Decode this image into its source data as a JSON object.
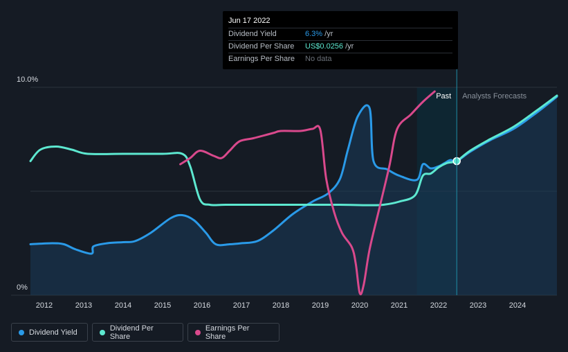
{
  "tooltip": {
    "date": "Jun 17 2022",
    "rows": [
      {
        "label": "Dividend Yield",
        "value": "6.3%",
        "unit": " /yr",
        "color": "#2a9ae8"
      },
      {
        "label": "Dividend Per Share",
        "value": "US$0.0256",
        "unit": " /yr",
        "color": "#5de8d0"
      },
      {
        "label": "Earnings Per Share",
        "value": "No data",
        "unit": "",
        "color": "#6b7179"
      }
    ]
  },
  "legend": [
    {
      "label": "Dividend Yield",
      "color": "#2a9ae8"
    },
    {
      "label": "Dividend Per Share",
      "color": "#5de8d0"
    },
    {
      "label": "Earnings Per Share",
      "color": "#d9498c"
    }
  ],
  "chart_data": {
    "type": "line",
    "y_tick_labels": [
      "10.0%",
      "0%"
    ],
    "ylim": [
      0,
      10
    ],
    "xlim": [
      2011.65,
      2025.0
    ],
    "x_ticks": [
      2012,
      2013,
      2014,
      2015,
      2016,
      2017,
      2018,
      2019,
      2020,
      2021,
      2022,
      2023,
      2024
    ],
    "past_label": "Past",
    "forecast_label": "Analysts Forecasts",
    "past_shade_start": 2021.45,
    "current_date": 2022.46,
    "series": [
      {
        "name": "Dividend Yield",
        "color": "#2a9ae8",
        "filled": true,
        "points": [
          [
            2011.65,
            2.45
          ],
          [
            2012.2,
            2.5
          ],
          [
            2012.5,
            2.45
          ],
          [
            2012.8,
            2.2
          ],
          [
            2013.2,
            2.0
          ],
          [
            2013.25,
            2.35
          ],
          [
            2013.6,
            2.5
          ],
          [
            2014.0,
            2.55
          ],
          [
            2014.3,
            2.6
          ],
          [
            2014.7,
            3.0
          ],
          [
            2015.2,
            3.7
          ],
          [
            2015.5,
            3.85
          ],
          [
            2015.8,
            3.6
          ],
          [
            2016.1,
            3.0
          ],
          [
            2016.35,
            2.45
          ],
          [
            2016.7,
            2.45
          ],
          [
            2017.0,
            2.5
          ],
          [
            2017.4,
            2.6
          ],
          [
            2017.8,
            3.1
          ],
          [
            2018.3,
            3.9
          ],
          [
            2018.8,
            4.5
          ],
          [
            2019.2,
            4.9
          ],
          [
            2019.5,
            5.6
          ],
          [
            2019.7,
            7.0
          ],
          [
            2019.95,
            8.6
          ],
          [
            2020.25,
            9.0
          ],
          [
            2020.35,
            6.45
          ],
          [
            2020.7,
            6.05
          ],
          [
            2021.0,
            5.75
          ],
          [
            2021.45,
            5.55
          ],
          [
            2021.6,
            6.3
          ],
          [
            2021.8,
            6.1
          ],
          [
            2022.0,
            6.2
          ],
          [
            2022.15,
            6.35
          ],
          [
            2022.3,
            6.5
          ],
          [
            2022.46,
            6.45
          ],
          [
            2022.8,
            6.9
          ],
          [
            2023.3,
            7.45
          ],
          [
            2023.9,
            8.0
          ],
          [
            2024.5,
            8.8
          ],
          [
            2025.0,
            9.55
          ]
        ]
      },
      {
        "name": "Dividend Per Share",
        "color": "#5de8d0",
        "filled": false,
        "points": [
          [
            2011.65,
            6.45
          ],
          [
            2011.9,
            7.0
          ],
          [
            2012.3,
            7.15
          ],
          [
            2012.7,
            7.0
          ],
          [
            2013.1,
            6.8
          ],
          [
            2014.0,
            6.8
          ],
          [
            2015.0,
            6.8
          ],
          [
            2015.5,
            6.8
          ],
          [
            2015.7,
            6.2
          ],
          [
            2015.95,
            4.6
          ],
          [
            2016.2,
            4.35
          ],
          [
            2016.6,
            4.35
          ],
          [
            2017.5,
            4.35
          ],
          [
            2018.5,
            4.35
          ],
          [
            2019.5,
            4.35
          ],
          [
            2020.2,
            4.33
          ],
          [
            2020.6,
            4.35
          ],
          [
            2021.0,
            4.5
          ],
          [
            2021.4,
            4.8
          ],
          [
            2021.6,
            5.75
          ],
          [
            2021.8,
            5.85
          ],
          [
            2022.0,
            6.15
          ],
          [
            2022.2,
            6.35
          ],
          [
            2022.35,
            6.4
          ],
          [
            2022.46,
            6.45
          ],
          [
            2022.8,
            6.95
          ],
          [
            2023.3,
            7.5
          ],
          [
            2023.9,
            8.1
          ],
          [
            2024.5,
            8.9
          ],
          [
            2025.0,
            9.6
          ]
        ]
      },
      {
        "name": "Earnings Per Share",
        "color": "#d9498c",
        "filled": false,
        "points": [
          [
            2015.45,
            6.3
          ],
          [
            2015.7,
            6.6
          ],
          [
            2015.95,
            6.95
          ],
          [
            2016.3,
            6.7
          ],
          [
            2016.5,
            6.6
          ],
          [
            2016.7,
            6.95
          ],
          [
            2016.95,
            7.4
          ],
          [
            2017.3,
            7.55
          ],
          [
            2017.8,
            7.8
          ],
          [
            2018.0,
            7.9
          ],
          [
            2018.5,
            7.9
          ],
          [
            2018.8,
            8.0
          ],
          [
            2019.0,
            7.95
          ],
          [
            2019.15,
            5.6
          ],
          [
            2019.35,
            4.0
          ],
          [
            2019.55,
            3.0
          ],
          [
            2019.8,
            2.3
          ],
          [
            2019.9,
            1.5
          ],
          [
            2020.0,
            0.1
          ],
          [
            2020.1,
            0.5
          ],
          [
            2020.25,
            2.2
          ],
          [
            2020.5,
            4.2
          ],
          [
            2020.75,
            6.2
          ],
          [
            2020.95,
            8.0
          ],
          [
            2021.3,
            8.7
          ],
          [
            2021.6,
            9.3
          ],
          [
            2021.9,
            9.8
          ]
        ]
      }
    ]
  }
}
